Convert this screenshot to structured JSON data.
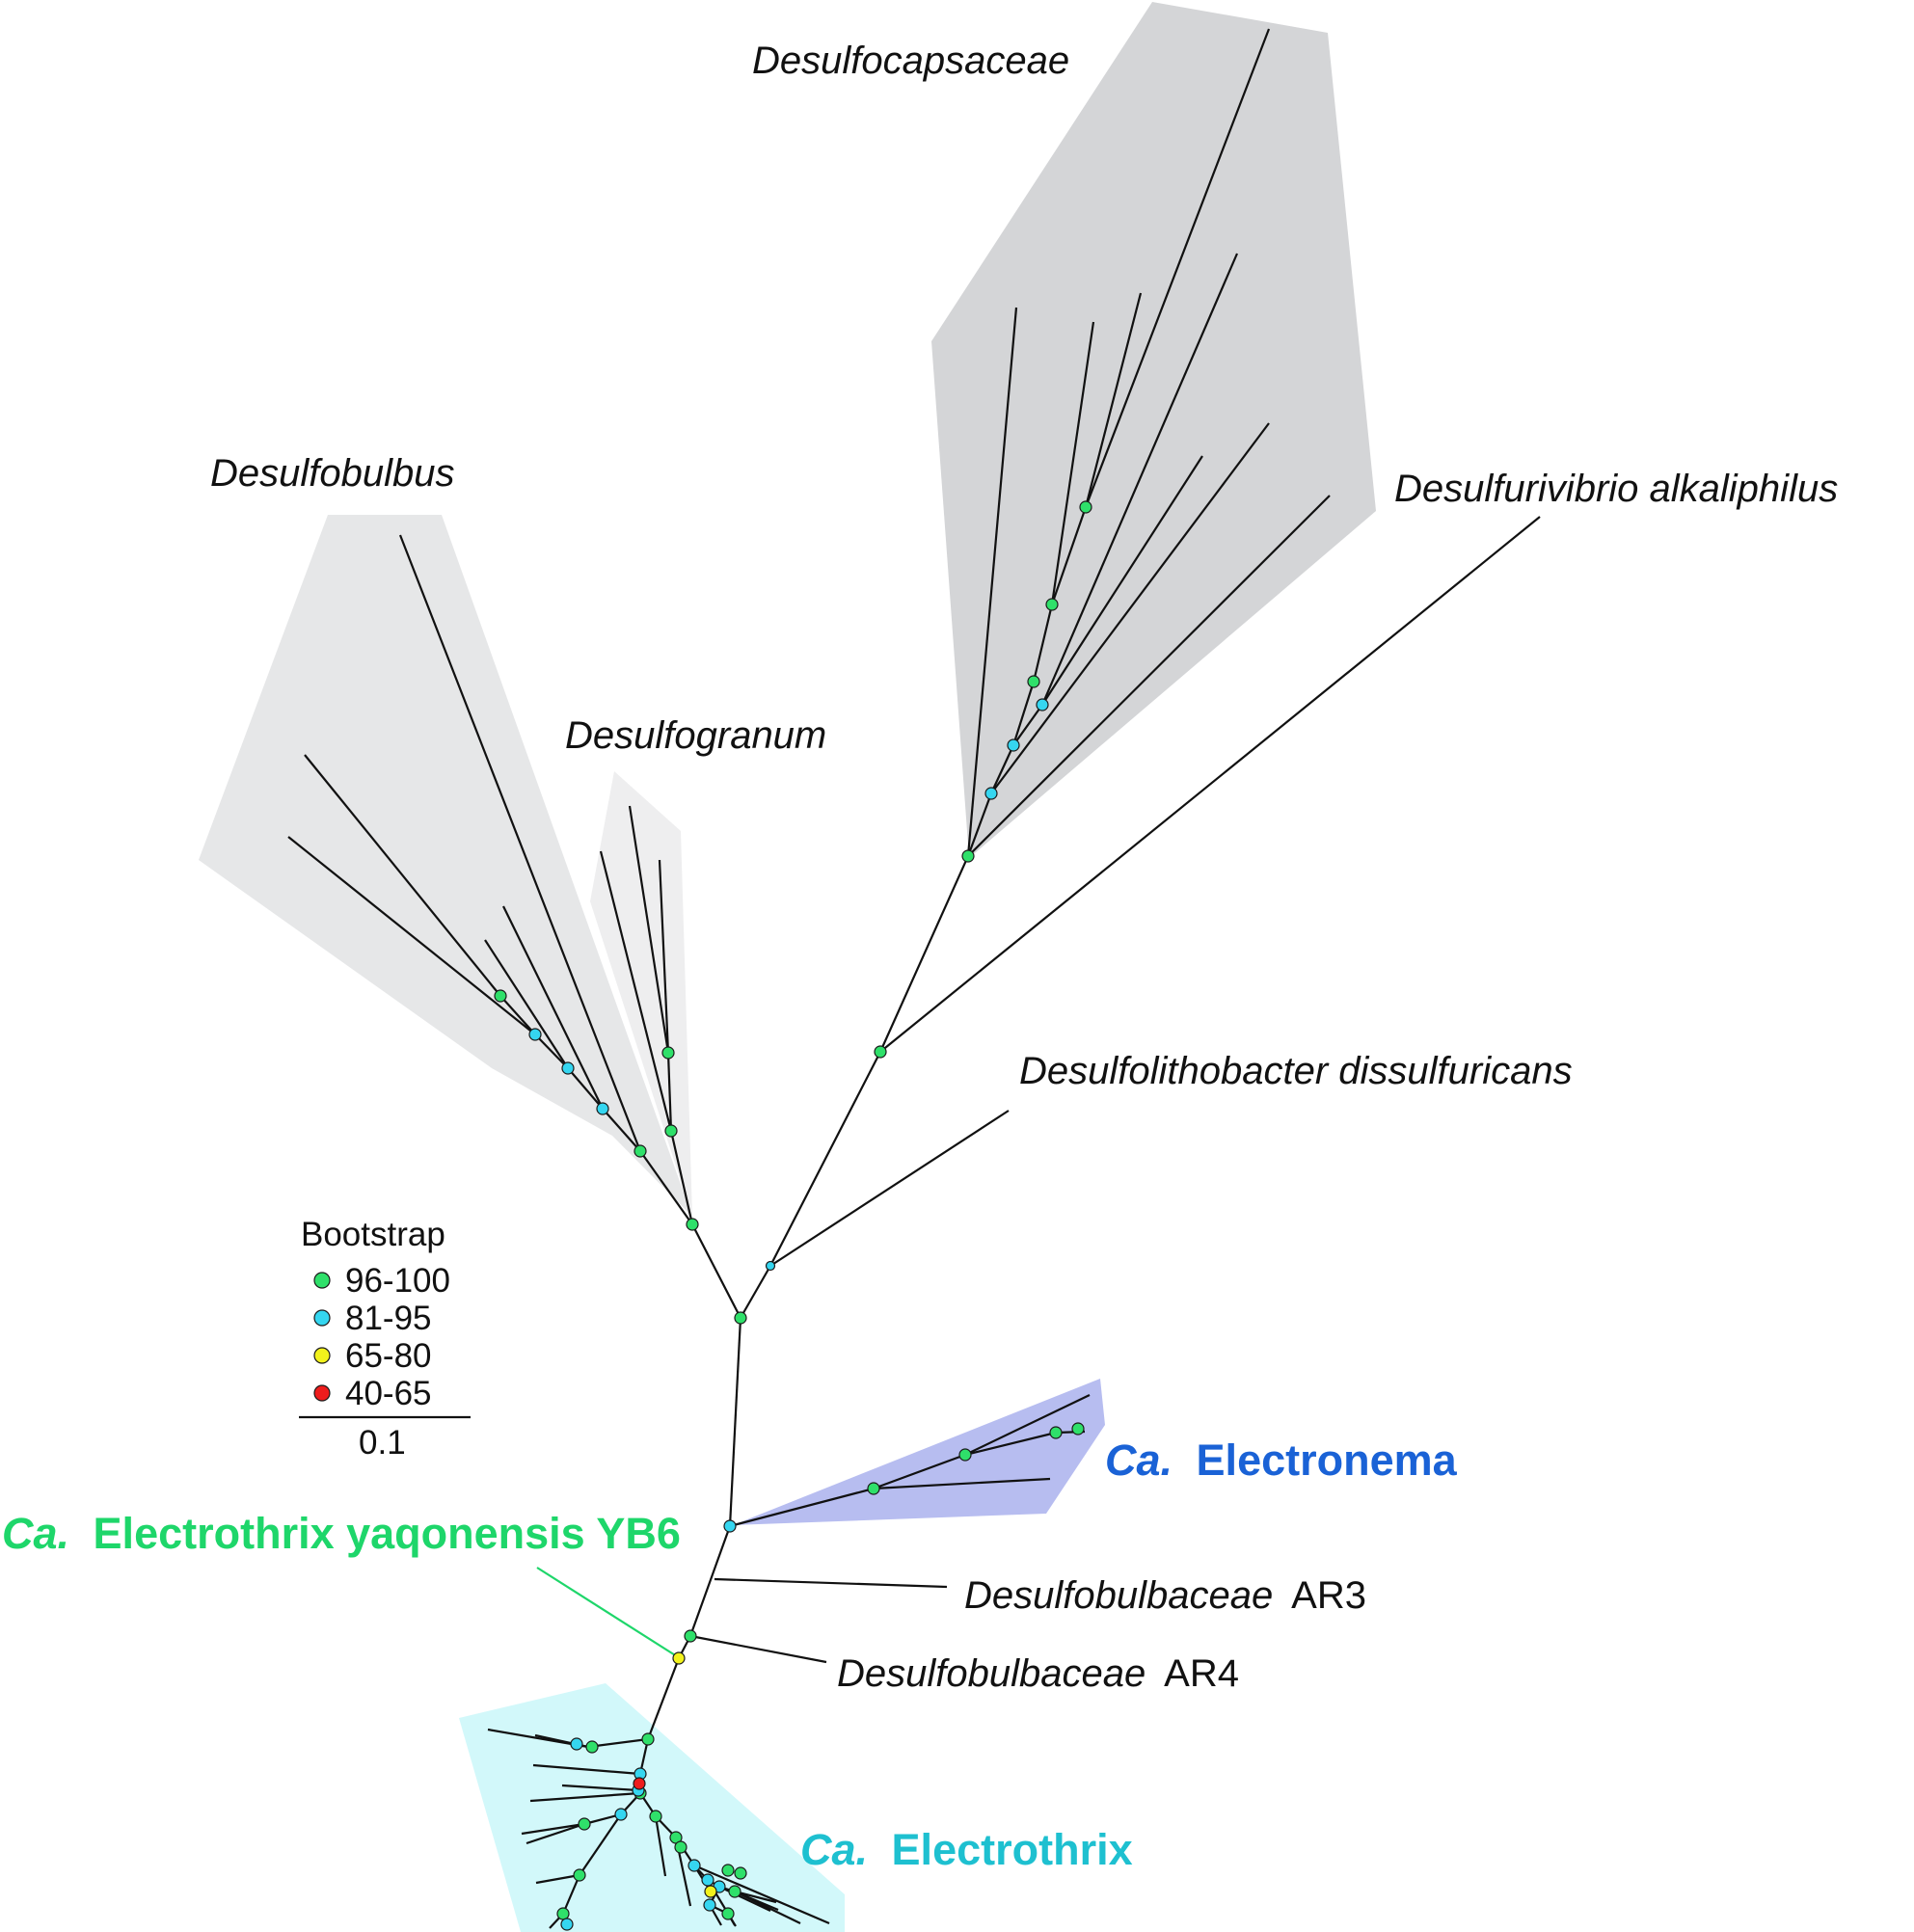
{
  "clades": {
    "desulfocapsaceae": "Desulfocapsaceae",
    "desulfobulbus": "Desulfobulbus",
    "desulfogranum": "Desulfogranum",
    "desulfurivibrio": "Desulfurivibrio alkaliphilus",
    "desulfolithobacter": "Desulfolithobacter dissulfuricans",
    "electronema_prefix": "Ca.",
    "electronema_name": "Electronema",
    "yb6_prefix": "Ca.",
    "yb6_name": "Electrothrix yaqonensis YB6",
    "ar3_genus": "Desulfobulbaceae",
    "ar3_suffix": "AR3",
    "ar4_genus": "Desulfobulbaceae",
    "ar4_suffix": "AR4",
    "electrothrix_prefix": "Ca.",
    "electrothrix_name": "Electrothrix"
  },
  "legend": {
    "title": "Bootstrap",
    "items": [
      {
        "range": "96-100",
        "color": "#2fe06a"
      },
      {
        "range": "81-95",
        "color": "#35d6f0"
      },
      {
        "range": "65-80",
        "color": "#f2f21c"
      },
      {
        "range": "40-65",
        "color": "#ee1c1c"
      }
    ],
    "scale": "0.1"
  },
  "colors": {
    "clade_gray_dark": "#d4d5d7",
    "clade_gray_light": "#e6e7e8",
    "clade_gray_lighter": "#eeeeef",
    "electronema_fill": "#b7bdf0",
    "electronema_text": "#1a62d6",
    "electrothrix_fill": "#d2f8fa",
    "electrothrix_text": "#1ec0d0",
    "yb6_text": "#1ed66a"
  }
}
